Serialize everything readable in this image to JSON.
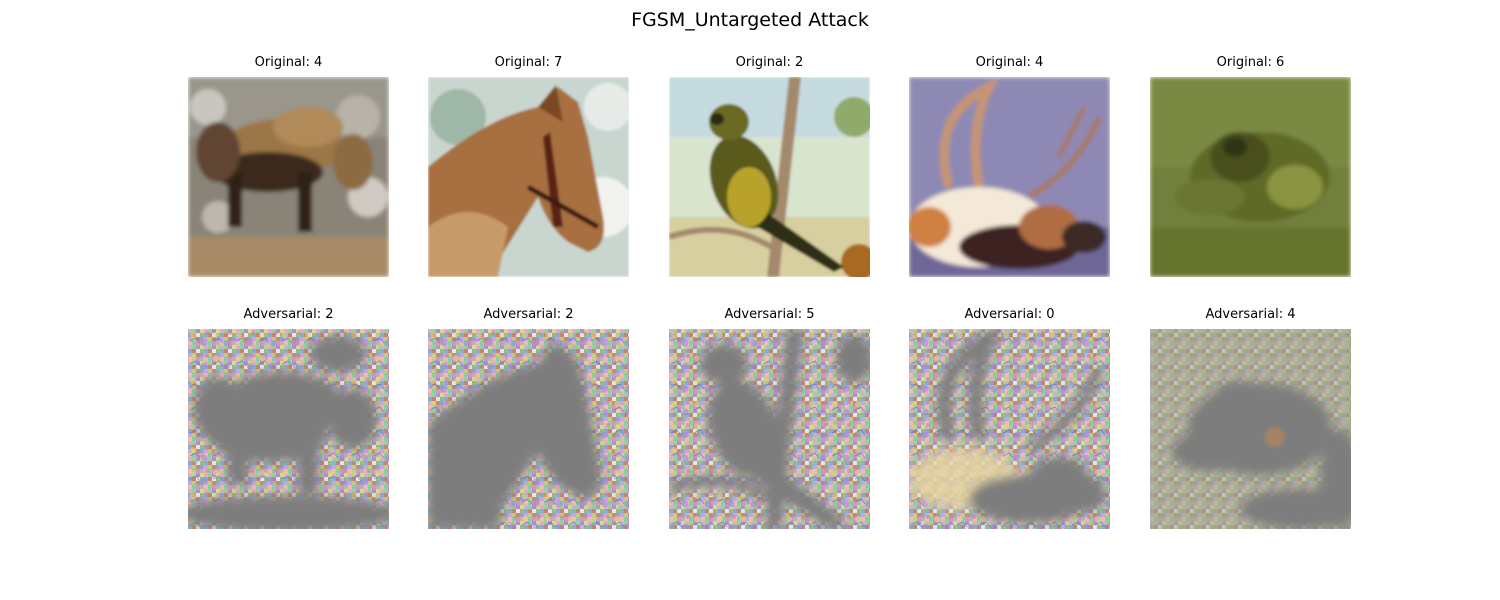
{
  "figure": {
    "title": "FGSM_Untargeted Attack"
  },
  "rows": [
    {
      "row": "original",
      "cells": [
        {
          "title": "Original: 4",
          "image": "blurry-brown-horse-standing-icon"
        },
        {
          "title": "Original: 7",
          "image": "horse-head-with-bridle-icon"
        },
        {
          "title": "Original: 2",
          "image": "small-bird-on-branch-icon"
        },
        {
          "title": "Original: 4",
          "image": "reindeer-with-antlers-icon"
        },
        {
          "title": "Original: 6",
          "image": "frog-on-grass-icon"
        }
      ]
    },
    {
      "row": "adversarial",
      "cells": [
        {
          "title": "Adversarial: 2",
          "image": "noisy-horse-silhouette-icon"
        },
        {
          "title": "Adversarial: 2",
          "image": "noisy-horse-head-silhouette-icon"
        },
        {
          "title": "Adversarial: 5",
          "image": "noisy-bird-silhouette-icon"
        },
        {
          "title": "Adversarial: 0",
          "image": "noisy-reindeer-silhouette-icon"
        },
        {
          "title": "Adversarial: 4",
          "image": "noisy-frog-silhouette-icon"
        }
      ]
    }
  ]
}
